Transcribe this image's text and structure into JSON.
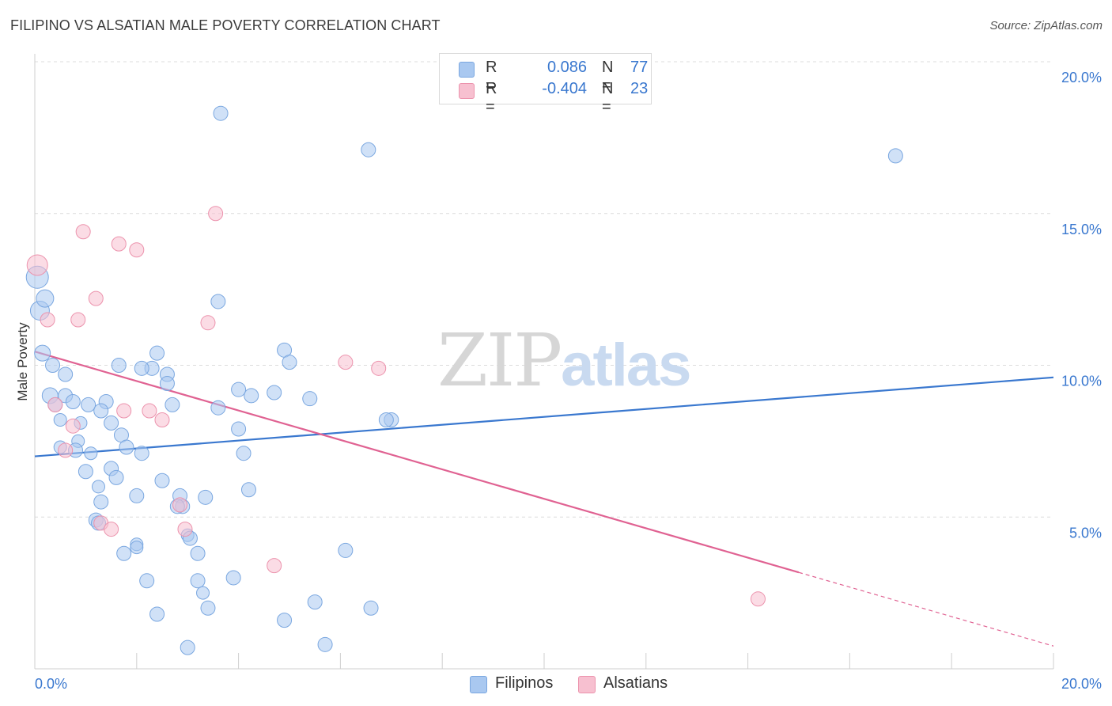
{
  "title": "FILIPINO VS ALSATIAN MALE POVERTY CORRELATION CHART",
  "source": "Source: ZipAtlas.com",
  "watermark": {
    "left": "ZIP",
    "right": "atlas"
  },
  "stats": [
    {
      "r_label": "R =",
      "r_value": "0.086",
      "n_label": "N =",
      "n_value": "77",
      "color": "#a9c8f0",
      "border": "#7aa7e0"
    },
    {
      "r_label": "R =",
      "r_value": "-0.404",
      "n_label": "N =",
      "n_value": "23",
      "color": "#f7c0d0",
      "border": "#ec93ad"
    }
  ],
  "legend": [
    {
      "label": "Filipinos",
      "color": "#a9c8f0",
      "border": "#7aa7e0"
    },
    {
      "label": "Alsatians",
      "color": "#f7c0d0",
      "border": "#ec93ad"
    }
  ],
  "chart_data": {
    "type": "scatter",
    "ylabel": "Male Poverty",
    "xlabel": "",
    "xlim": [
      0,
      20
    ],
    "ylim": [
      0,
      20
    ],
    "x_tick_labels": [
      {
        "value": 0,
        "label": "0.0%"
      },
      {
        "value": 20,
        "label": "20.0%"
      }
    ],
    "x_minor_ticks": [
      0,
      2,
      4,
      6,
      8,
      10,
      12,
      14,
      16,
      18,
      20
    ],
    "y_ticks": [
      {
        "value": 5,
        "label": "5.0%"
      },
      {
        "value": 10,
        "label": "10.0%"
      },
      {
        "value": 15,
        "label": "15.0%"
      },
      {
        "value": 20,
        "label": "20.0%"
      }
    ],
    "grid": "horizontal dashed",
    "series": [
      {
        "name": "Filipinos",
        "color": "#a9c8f0",
        "stroke": "#7aa7e0",
        "trend_color": "#3a78cf",
        "trend": {
          "x0": 0,
          "y0": 7.0,
          "x1": 20,
          "y1": 9.6,
          "solid_to": 20
        },
        "points": [
          [
            0.05,
            12.9,
            14
          ],
          [
            0.1,
            11.8,
            12
          ],
          [
            0.2,
            12.2,
            11
          ],
          [
            0.15,
            10.4,
            10
          ],
          [
            0.35,
            10.0,
            9
          ],
          [
            0.6,
            9.7,
            9
          ],
          [
            0.3,
            9.0,
            10
          ],
          [
            0.6,
            9.0,
            9
          ],
          [
            0.4,
            8.7,
            9
          ],
          [
            0.75,
            8.8,
            9
          ],
          [
            1.05,
            8.7,
            9
          ],
          [
            1.4,
            8.8,
            9
          ],
          [
            0.9,
            8.1,
            8
          ],
          [
            0.5,
            8.2,
            8
          ],
          [
            1.3,
            8.5,
            9
          ],
          [
            1.5,
            8.1,
            9
          ],
          [
            1.7,
            7.7,
            9
          ],
          [
            0.85,
            7.5,
            8
          ],
          [
            0.5,
            7.3,
            8
          ],
          [
            0.8,
            7.2,
            9
          ],
          [
            1.1,
            7.1,
            8
          ],
          [
            1.8,
            7.3,
            9
          ],
          [
            2.1,
            7.1,
            9
          ],
          [
            1.5,
            6.6,
            9
          ],
          [
            1.6,
            6.3,
            9
          ],
          [
            1.0,
            6.5,
            9
          ],
          [
            2.5,
            6.2,
            9
          ],
          [
            2.0,
            5.7,
            9
          ],
          [
            1.3,
            5.5,
            9
          ],
          [
            2.85,
            5.7,
            9
          ],
          [
            3.35,
            5.65,
            9
          ],
          [
            2.9,
            5.35,
            9
          ],
          [
            2.8,
            5.35,
            9
          ],
          [
            1.2,
            4.9,
            9
          ],
          [
            1.25,
            4.8,
            9
          ],
          [
            2.0,
            4.1,
            8
          ],
          [
            2.0,
            4.0,
            8
          ],
          [
            1.75,
            3.8,
            9
          ],
          [
            3.0,
            4.4,
            8
          ],
          [
            3.05,
            4.3,
            9
          ],
          [
            3.2,
            3.8,
            9
          ],
          [
            2.2,
            2.9,
            9
          ],
          [
            3.2,
            2.9,
            9
          ],
          [
            3.3,
            2.5,
            8
          ],
          [
            3.4,
            2.0,
            9
          ],
          [
            2.4,
            1.8,
            9
          ],
          [
            3.0,
            0.7,
            9
          ],
          [
            3.6,
            12.1,
            9
          ],
          [
            3.6,
            8.6,
            9
          ],
          [
            4.0,
            7.9,
            9
          ],
          [
            4.1,
            7.1,
            9
          ],
          [
            4.2,
            5.9,
            9
          ],
          [
            3.9,
            3.0,
            9
          ],
          [
            4.9,
            10.5,
            9
          ],
          [
            5.0,
            10.1,
            9
          ],
          [
            4.7,
            9.1,
            9
          ],
          [
            4.25,
            9.0,
            9
          ],
          [
            4.0,
            9.2,
            9
          ],
          [
            5.4,
            8.9,
            9
          ],
          [
            6.1,
            3.9,
            9
          ],
          [
            4.9,
            1.6,
            9
          ],
          [
            5.5,
            2.2,
            9
          ],
          [
            5.7,
            0.8,
            9
          ],
          [
            6.55,
            17.1,
            9
          ],
          [
            3.65,
            18.3,
            9
          ],
          [
            7.0,
            8.2,
            9
          ],
          [
            6.9,
            8.2,
            9
          ],
          [
            6.6,
            2.0,
            9
          ],
          [
            16.9,
            16.9,
            9
          ],
          [
            2.4,
            10.4,
            9
          ],
          [
            2.3,
            9.9,
            9
          ],
          [
            2.1,
            9.9,
            9
          ],
          [
            2.6,
            9.7,
            9
          ],
          [
            2.6,
            9.4,
            9
          ],
          [
            2.7,
            8.7,
            9
          ],
          [
            1.65,
            10.0,
            9
          ],
          [
            1.25,
            6.0,
            8
          ]
        ]
      },
      {
        "name": "Alsatians",
        "color": "#f7c0d0",
        "stroke": "#ec93ad",
        "trend_color": "#e06292",
        "trend": {
          "x0": 0,
          "y0": 10.45,
          "x1": 20,
          "y1": 0.75,
          "solid_to": 15.0
        },
        "points": [
          [
            0.05,
            13.3,
            13
          ],
          [
            0.25,
            11.5,
            9
          ],
          [
            0.85,
            11.5,
            9
          ],
          [
            1.2,
            12.2,
            9
          ],
          [
            0.95,
            14.4,
            9
          ],
          [
            1.65,
            14.0,
            9
          ],
          [
            2.0,
            13.8,
            9
          ],
          [
            3.55,
            15.0,
            9
          ],
          [
            3.4,
            11.4,
            9
          ],
          [
            0.4,
            8.7,
            9
          ],
          [
            0.75,
            8.0,
            9
          ],
          [
            0.6,
            7.2,
            9
          ],
          [
            1.75,
            8.5,
            9
          ],
          [
            2.25,
            8.5,
            9
          ],
          [
            2.5,
            8.2,
            9
          ],
          [
            6.1,
            10.1,
            9
          ],
          [
            6.75,
            9.9,
            9
          ],
          [
            1.3,
            4.8,
            9
          ],
          [
            1.5,
            4.6,
            9
          ],
          [
            2.85,
            5.4,
            9
          ],
          [
            2.95,
            4.6,
            9
          ],
          [
            4.7,
            3.4,
            9
          ],
          [
            14.2,
            2.3,
            9
          ]
        ]
      }
    ]
  }
}
